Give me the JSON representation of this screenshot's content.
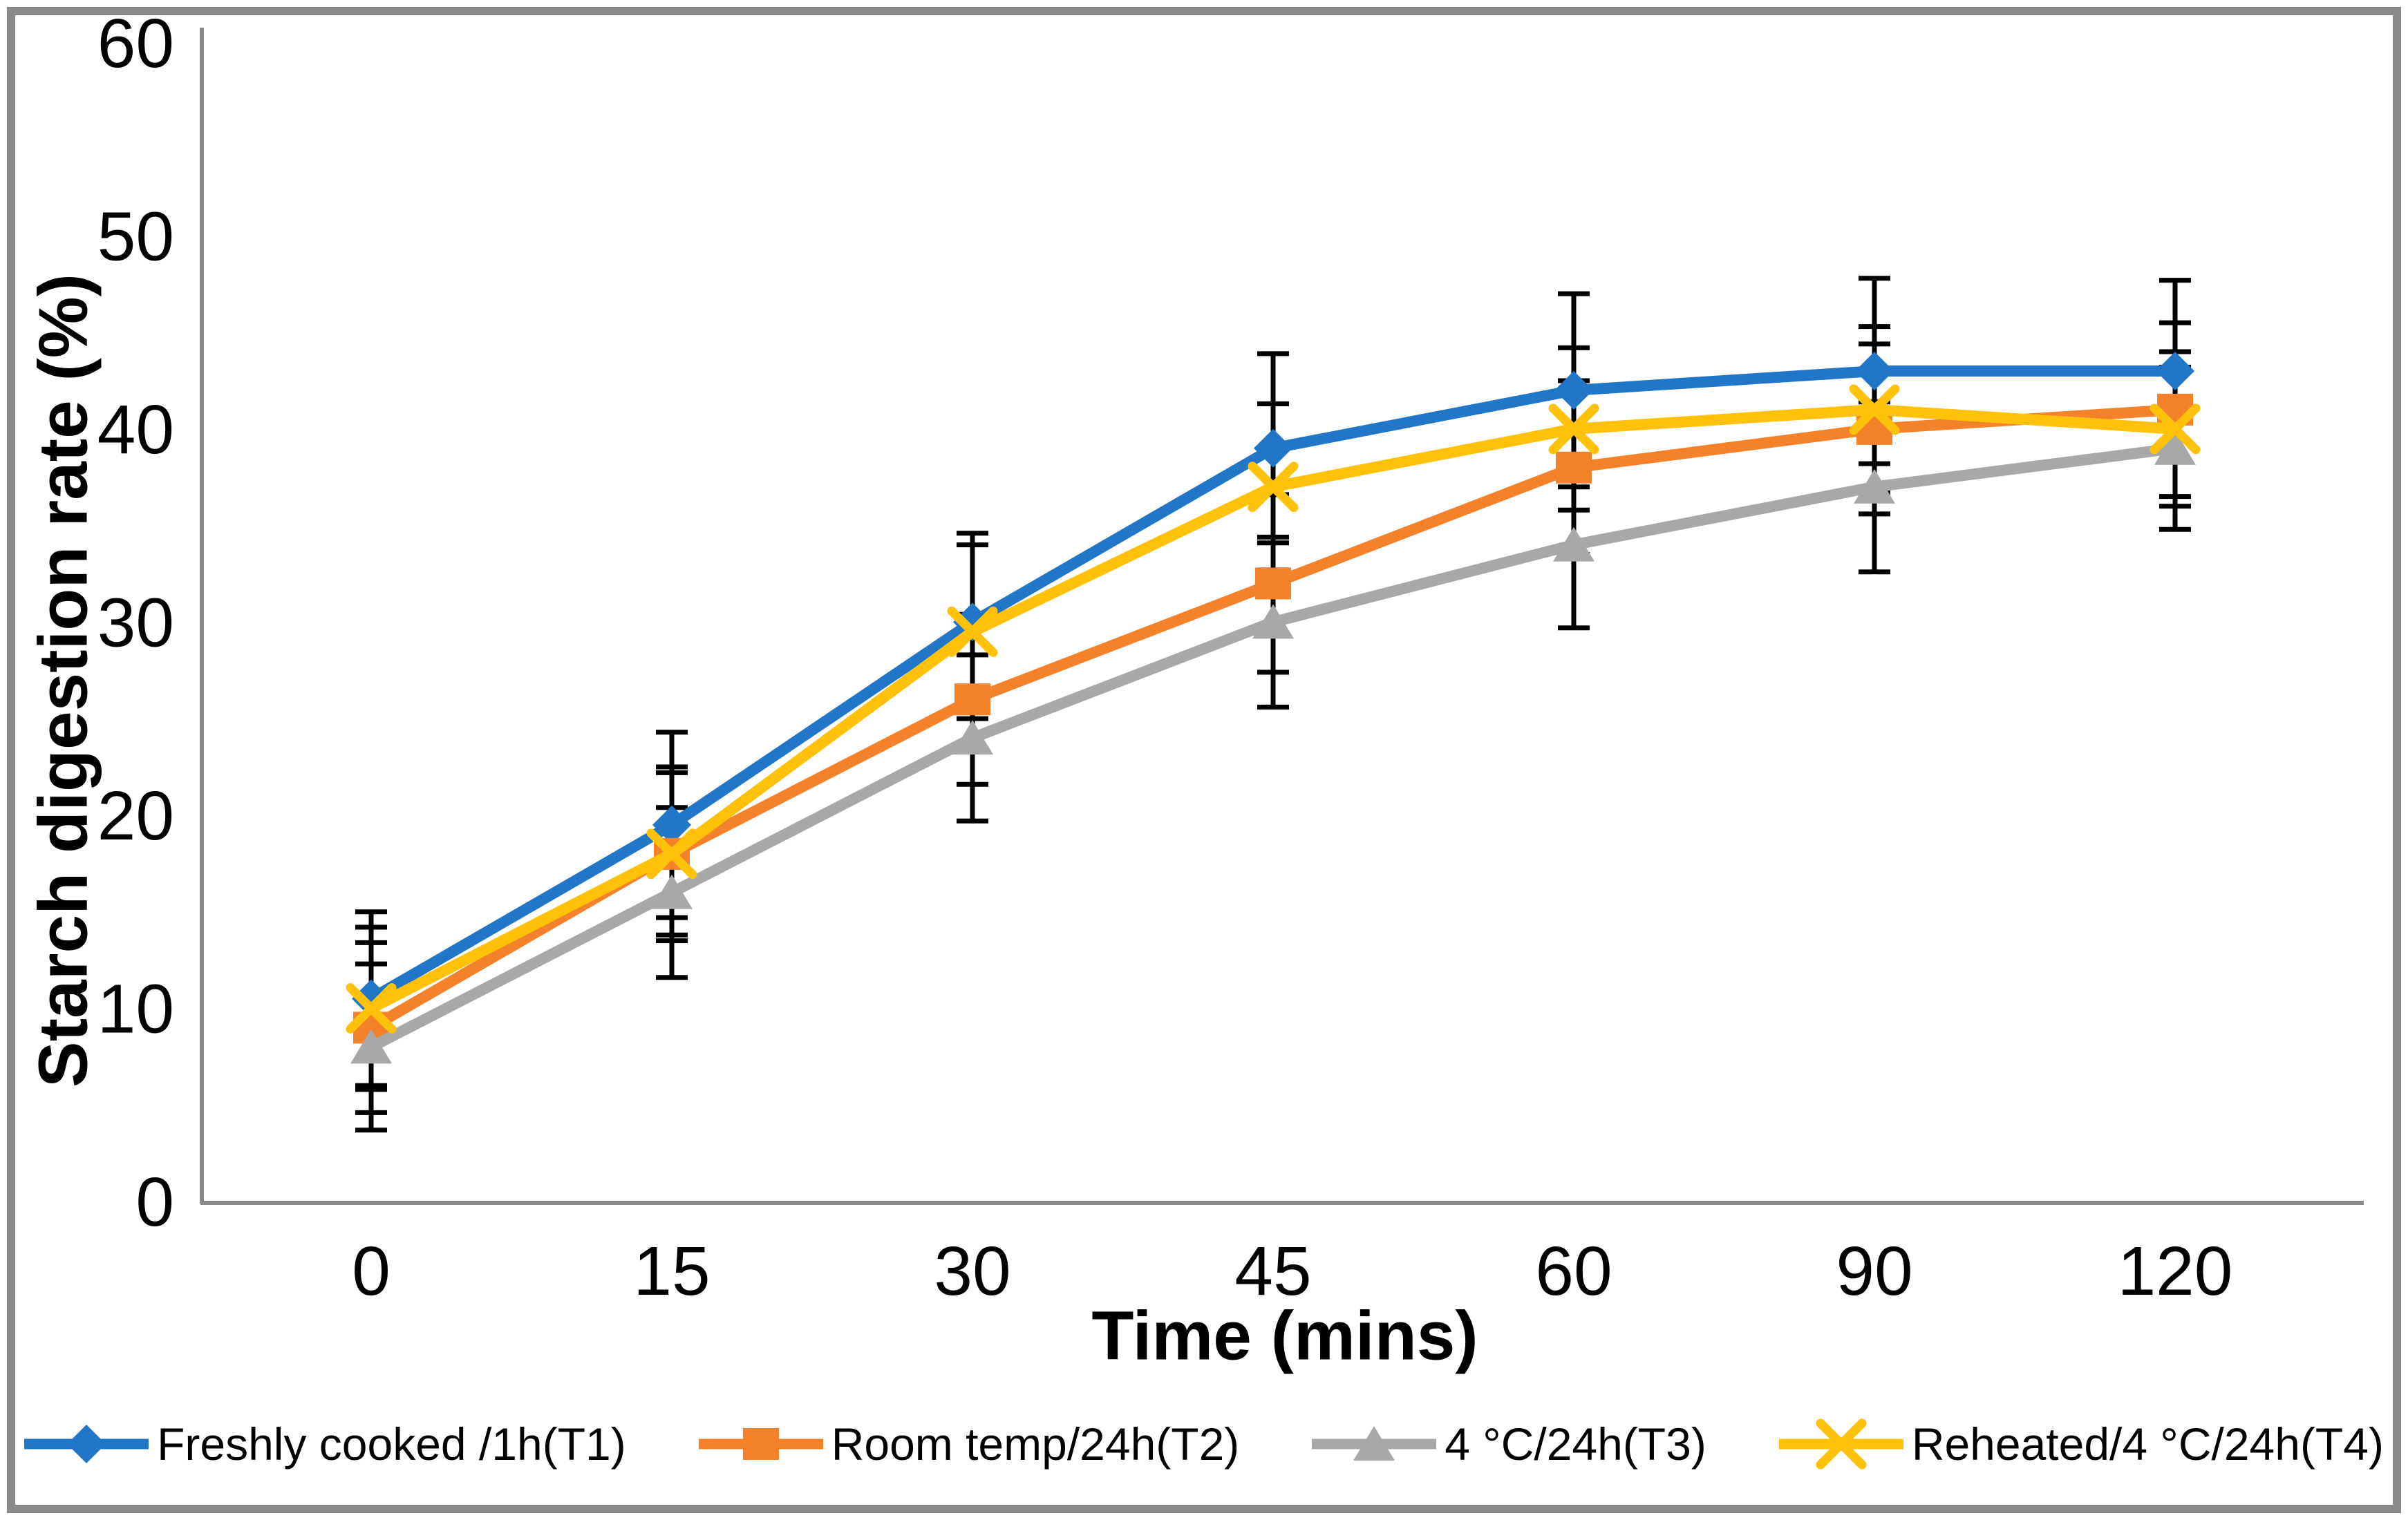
{
  "chart_data": {
    "type": "line",
    "title": "",
    "xlabel": "Time (mins)",
    "ylabel": "Starch digestion rate (%)",
    "categories": [
      "0",
      "15",
      "30",
      "45",
      "60",
      "90",
      "120"
    ],
    "y_ticks": [
      0,
      10,
      20,
      30,
      40,
      50,
      60
    ],
    "ylim": [
      0,
      60
    ],
    "grid": false,
    "legend_position": "bottom",
    "error_bar_color": "#000000",
    "axis_color": "#8a8a8a",
    "series": [
      {
        "name": "Freshly cooked /1h(T1)",
        "color": "#2176c7",
        "marker": "diamond",
        "values": [
          10.5,
          19.5,
          30,
          39,
          42,
          43,
          43
        ],
        "errors": [
          4.5,
          4.8,
          4.6,
          4.9,
          5.0,
          4.8,
          4.7
        ]
      },
      {
        "name": "Room temp/24h(T2)",
        "color": "#f5822a",
        "marker": "square",
        "values": [
          9,
          18,
          26,
          32,
          38,
          40,
          41
        ],
        "errors": [
          4.4,
          4.5,
          4.4,
          4.6,
          4.5,
          4.4,
          4.5
        ]
      },
      {
        "name": "4 °C/24h(T3)",
        "color": "#a8a8a8",
        "marker": "triangle",
        "values": [
          8,
          16,
          24,
          30,
          34,
          37,
          39
        ],
        "errors": [
          4.3,
          4.4,
          4.3,
          4.4,
          4.3,
          4.4,
          4.2
        ]
      },
      {
        "name": "Reheated/4 °C/24h(T4)",
        "color": "#ffc10a",
        "marker": "x",
        "values": [
          10,
          18,
          29.5,
          37,
          40,
          41,
          40
        ],
        "errors": [
          4.2,
          4.2,
          4.5,
          4.3,
          4.2,
          4.3,
          4.0
        ]
      }
    ]
  }
}
